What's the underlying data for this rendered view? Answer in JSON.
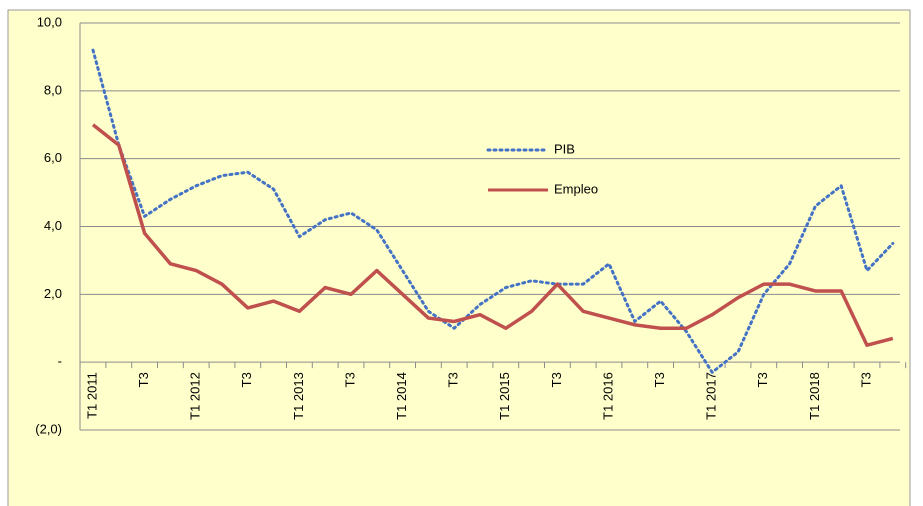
{
  "chart_data": {
    "type": "line",
    "categories": [
      "T1 2011",
      null,
      "T3",
      null,
      "T1 2012",
      null,
      "T3",
      null,
      "T1 2013",
      null,
      "T3",
      null,
      "T1 2014",
      null,
      "T3",
      null,
      "T1 2015",
      null,
      "T3",
      null,
      "T1 2016",
      null,
      "T3",
      null,
      "T1 2017",
      null,
      "T3",
      null,
      "T1 2018",
      null,
      "T3",
      null
    ],
    "series": [
      {
        "name": "PIB",
        "color": "#4472c4",
        "dotted": true,
        "values": [
          9.2,
          6.4,
          4.3,
          4.8,
          5.2,
          5.5,
          5.6,
          5.1,
          3.7,
          4.2,
          4.4,
          3.9,
          2.7,
          1.5,
          1.0,
          1.7,
          2.2,
          2.4,
          2.3,
          2.3,
          2.9,
          1.2,
          1.8,
          0.9,
          -0.3,
          0.3,
          2.0,
          2.9,
          4.6,
          5.2,
          2.7,
          3.5
        ]
      },
      {
        "name": "Empleo",
        "color": "#c0504d",
        "dotted": false,
        "values": [
          7.0,
          6.4,
          3.8,
          2.9,
          2.7,
          2.3,
          1.6,
          1.8,
          1.5,
          2.2,
          2.0,
          2.7,
          2.0,
          1.3,
          1.2,
          1.4,
          1.0,
          1.5,
          2.3,
          1.5,
          1.3,
          1.1,
          1.0,
          1.0,
          1.4,
          1.9,
          2.3,
          2.3,
          2.1,
          2.1,
          0.5,
          0.7
        ]
      }
    ],
    "ylim": [
      -2,
      10
    ],
    "yticks": [
      {
        "value": -2,
        "label": "(2,0)"
      },
      {
        "value": 0,
        "label": "-"
      },
      {
        "value": 2,
        "label": "2,0"
      },
      {
        "value": 4,
        "label": "4,0"
      },
      {
        "value": 6,
        "label": "6,0"
      },
      {
        "value": 8,
        "label": "8,0"
      },
      {
        "value": 10,
        "label": "10,0"
      }
    ],
    "grid": true
  }
}
